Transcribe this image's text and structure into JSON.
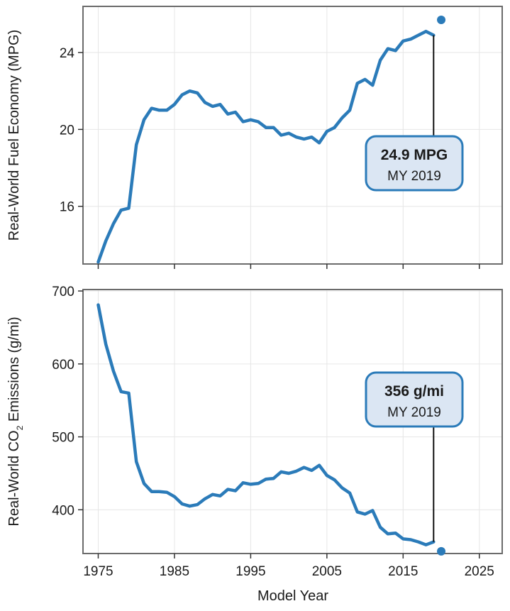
{
  "chart_data": [
    {
      "type": "line",
      "ylabel": "Real-World Fuel Economy (MPG)",
      "xlim": [
        1973,
        2028
      ],
      "ylim": [
        13,
        26.4
      ],
      "xticks": [
        1975,
        1985,
        1995,
        2005,
        2015,
        2025
      ],
      "yticks": [
        16,
        20,
        24
      ],
      "grid": true,
      "series": [
        {
          "x": [
            1975,
            1976,
            1977,
            1978,
            1979,
            1980,
            1981,
            1982,
            1983,
            1984,
            1985,
            1986,
            1987,
            1988,
            1989,
            1990,
            1991,
            1992,
            1993,
            1994,
            1995,
            1996,
            1997,
            1998,
            1999,
            2000,
            2001,
            2002,
            2003,
            2004,
            2005,
            2006,
            2007,
            2008,
            2009,
            2010,
            2011,
            2012,
            2013,
            2014,
            2015,
            2016,
            2017,
            2018,
            2019
          ],
          "values": [
            13.1,
            14.2,
            15.1,
            15.8,
            15.9,
            19.2,
            20.5,
            21.1,
            21.0,
            21.0,
            21.3,
            21.8,
            22.0,
            21.9,
            21.4,
            21.2,
            21.3,
            20.8,
            20.9,
            20.4,
            20.5,
            20.4,
            20.1,
            20.1,
            19.7,
            19.8,
            19.6,
            19.5,
            19.6,
            19.3,
            19.9,
            20.1,
            20.6,
            21.0,
            22.4,
            22.6,
            22.3,
            23.6,
            24.2,
            24.1,
            24.6,
            24.7,
            24.9,
            25.1,
            24.9
          ]
        }
      ],
      "highlight": {
        "x": 2020,
        "y": 25.7,
        "label_value": "24.9 MPG",
        "label_sub": "MY 2019"
      }
    },
    {
      "type": "line",
      "ylabel_pre": "Real-World CO",
      "ylabel_sub": "2",
      "ylabel_post": " Emissions (g/mi)",
      "xlabel": "Model Year",
      "xlim": [
        1973,
        2028
      ],
      "ylim": [
        340,
        702
      ],
      "xticks": [
        1975,
        1985,
        1995,
        2005,
        2015,
        2025
      ],
      "yticks": [
        400,
        500,
        600,
        700
      ],
      "grid": true,
      "series": [
        {
          "x": [
            1975,
            1976,
            1977,
            1978,
            1979,
            1980,
            1981,
            1982,
            1983,
            1984,
            1985,
            1986,
            1987,
            1988,
            1989,
            1990,
            1991,
            1992,
            1993,
            1994,
            1995,
            1996,
            1997,
            1998,
            1999,
            2000,
            2001,
            2002,
            2003,
            2004,
            2005,
            2006,
            2007,
            2008,
            2009,
            2010,
            2011,
            2012,
            2013,
            2014,
            2015,
            2016,
            2017,
            2018,
            2019
          ],
          "values": [
            681,
            627,
            590,
            562,
            560,
            466,
            436,
            425,
            425,
            424,
            418,
            408,
            405,
            407,
            415,
            421,
            419,
            428,
            426,
            437,
            435,
            436,
            442,
            443,
            452,
            450,
            453,
            458,
            454,
            461,
            447,
            441,
            430,
            423,
            397,
            394,
            399,
            376,
            367,
            368,
            360,
            359,
            356,
            352,
            356
          ]
        }
      ],
      "highlight": {
        "x": 2020,
        "y": 343,
        "label_value": "356 g/mi",
        "label_sub": "MY 2019"
      }
    }
  ],
  "colors": {
    "series": "#2b7bb9",
    "callout_fill": "#dbe6f3",
    "callout_border": "#2b7bb9",
    "frame": "#6b6b6b",
    "grid": "#e6e6e6"
  }
}
